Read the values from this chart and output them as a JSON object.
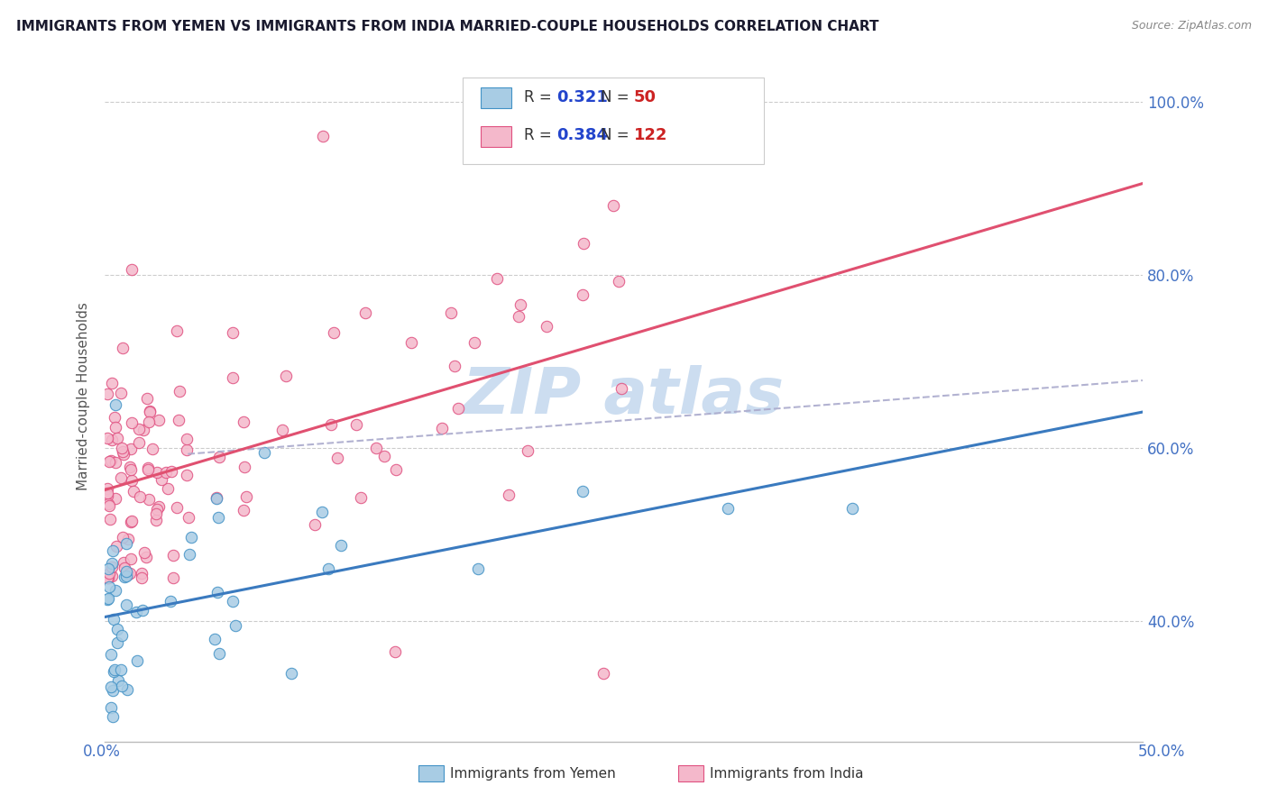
{
  "title": "IMMIGRANTS FROM YEMEN VS IMMIGRANTS FROM INDIA MARRIED-COUPLE HOUSEHOLDS CORRELATION CHART",
  "source": "Source: ZipAtlas.com",
  "ylabel": "Married-couple Households",
  "y_ticks_labels": [
    "40.0%",
    "60.0%",
    "80.0%",
    "100.0%"
  ],
  "y_tick_vals": [
    0.4,
    0.6,
    0.8,
    1.0
  ],
  "xmin": 0.0,
  "xmax": 0.5,
  "ymin": 0.26,
  "ymax": 1.06,
  "legend1_R": "0.321",
  "legend1_N": "50",
  "legend2_R": "0.384",
  "legend2_N": "122",
  "yemen_color": "#a8cce4",
  "yemen_edge_color": "#4292c6",
  "india_color": "#f4b8cb",
  "india_edge_color": "#e05080",
  "trend_yemen_color": "#3a7abf",
  "trend_india_color": "#e05070",
  "dash_color": "#aaaacc",
  "watermark_color": "#ccddf0",
  "title_color": "#1a1a2e",
  "source_color": "#888888",
  "axis_label_color": "#4472c4",
  "ylabel_color": "#555555",
  "legend_text_color": "#2222aa",
  "legend_R_color": "#2244cc",
  "legend_N_color": "#cc2222"
}
